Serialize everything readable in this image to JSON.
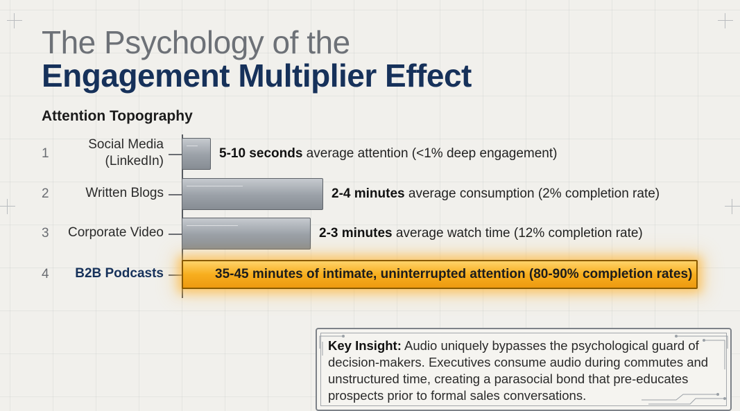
{
  "title": {
    "line1": "The Psychology of the",
    "line2": "Engagement Multiplier Effect"
  },
  "chart_data": {
    "type": "bar",
    "orientation": "horizontal",
    "subtitle": "Attention Topography",
    "categories": [
      "Social Media (LinkedIn)",
      "Written Blogs",
      "Corporate Video",
      "B2B Podcasts"
    ],
    "ranks": [
      "1",
      "2",
      "3",
      "4"
    ],
    "category_lines": [
      [
        "Social Media",
        "(LinkedIn)"
      ],
      [
        "Written Blogs"
      ],
      [
        "Corporate Video"
      ],
      [
        "B2B Podcasts"
      ]
    ],
    "series": [
      {
        "values": [
          0.125,
          3,
          2.5,
          40
        ],
        "unit": "minutes (approx. typical attention)"
      }
    ],
    "data_labels": [
      {
        "bold": "5-10 seconds",
        "rest": " average attention (<1% deep engagement)"
      },
      {
        "bold": "2-4 minutes",
        "rest": " average consumption (2% completion rate)"
      },
      {
        "bold": "2-3 minutes",
        "rest": " average watch time (12% completion rate)"
      },
      {
        "bold": "",
        "rest": "35-45 minutes of intimate, uninterrupted attention (80-90% completion rates)"
      }
    ],
    "highlight_index": 3,
    "grid": true,
    "legend": "none"
  },
  "insight": {
    "label": "Key Insight:",
    "text": " Audio uniquely bypasses the psychological guard of decision-makers. Executives consume audio during commutes and unstructured time, creating a parasocial bond that pre-educates prospects prior to formal sales conversations."
  },
  "colors": {
    "title_gray": "#6d7177",
    "title_navy": "#16315a",
    "bar_gray": "#9aa0a7",
    "bar_highlight": "#f7ae1e",
    "background": "#f1f0ec"
  }
}
